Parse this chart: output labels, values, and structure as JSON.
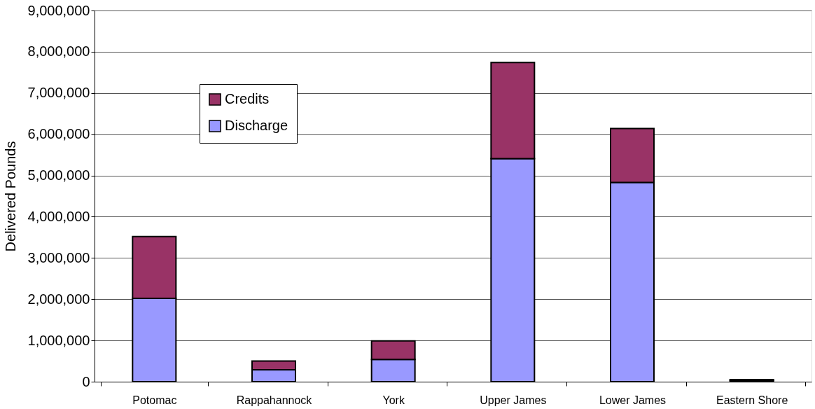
{
  "chart_data": {
    "type": "bar",
    "stacked": true,
    "ylabel": "Delivered Pounds",
    "categories": [
      "Potomac",
      "Rappahannock",
      "York",
      "Upper James",
      "Lower James",
      "Eastern Shore"
    ],
    "series": [
      {
        "name": "Discharge",
        "color": "#9999ff",
        "values": [
          2020000,
          290000,
          540000,
          5410000,
          4830000,
          30000
        ]
      },
      {
        "name": "Credits",
        "color": "#993366",
        "values": [
          1500000,
          210000,
          450000,
          2330000,
          1310000,
          20000
        ]
      }
    ],
    "ylim": [
      0,
      9000000
    ],
    "yticks": [
      0,
      {
        "value": 1000000,
        "label": "1,000,000"
      },
      {
        "value": 2000000,
        "label": "2,000,000"
      },
      {
        "value": 3000000,
        "label": "3,000,000"
      },
      {
        "value": 4000000,
        "label": "4,000,000"
      },
      {
        "value": 5000000,
        "label": "5,000,000"
      },
      {
        "value": 6000000,
        "label": "6,000,000"
      },
      {
        "value": 7000000,
        "label": "7,000,000"
      },
      {
        "value": 8000000,
        "label": "8,000,000"
      },
      {
        "value": 9000000,
        "label": "9,000,000"
      }
    ],
    "grid": "y",
    "legend": "top left"
  }
}
